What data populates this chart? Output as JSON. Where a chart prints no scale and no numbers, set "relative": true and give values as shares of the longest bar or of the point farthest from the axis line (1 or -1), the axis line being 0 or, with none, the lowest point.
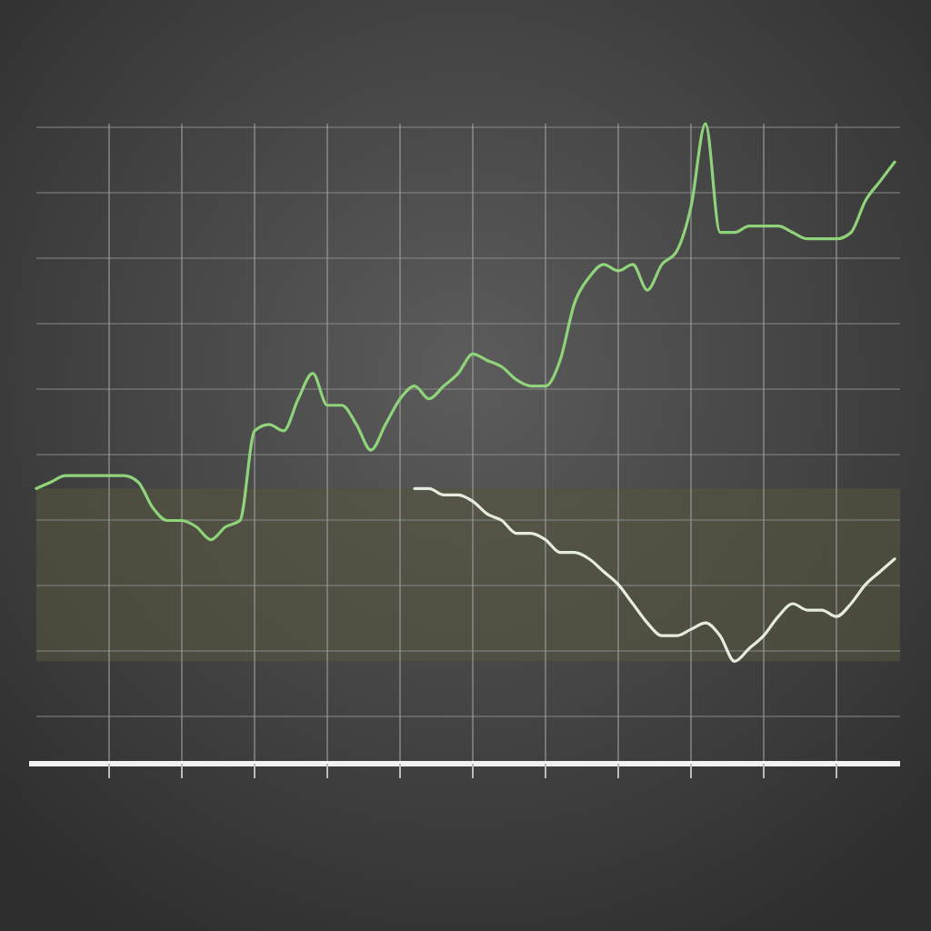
{
  "chart_data": {
    "type": "line",
    "relative": true,
    "categories": [
      null,
      null,
      null,
      null,
      null,
      null,
      null,
      null,
      null,
      null,
      null,
      null,
      null,
      null,
      null,
      null,
      null,
      null,
      null,
      null,
      null,
      null,
      null,
      null,
      null,
      null,
      null,
      null,
      null,
      null,
      null,
      null,
      null,
      null,
      null,
      null,
      null,
      null,
      null,
      null,
      null,
      null,
      null,
      null,
      null,
      null,
      null,
      null,
      null,
      null,
      null,
      null,
      null,
      null,
      null,
      null,
      null,
      null,
      null,
      null
    ],
    "series": [
      {
        "color": "#8fd47a",
        "values": [
          0.43,
          0.44,
          0.45,
          0.45,
          0.45,
          0.45,
          0.45,
          0.44,
          0.4,
          0.38,
          0.38,
          0.37,
          0.35,
          0.37,
          0.38,
          0.52,
          0.53,
          0.52,
          0.57,
          0.61,
          0.56,
          0.56,
          0.53,
          0.49,
          0.53,
          0.57,
          0.59,
          0.57,
          0.59,
          0.61,
          0.64,
          0.63,
          0.62,
          0.6,
          0.59,
          0.59,
          0.63,
          0.72,
          0.76,
          0.78,
          0.77,
          0.78,
          0.74,
          0.78,
          0.8,
          0.87,
          1,
          0.83,
          0.83,
          0.84,
          0.84,
          0.84,
          0.83,
          0.82,
          0.82,
          0.82,
          0.83,
          0.88,
          0.91,
          0.94
        ]
      },
      {
        "color": "#e6ecdc",
        "values": [
          null,
          null,
          null,
          null,
          null,
          null,
          null,
          null,
          null,
          null,
          null,
          null,
          null,
          null,
          null,
          null,
          null,
          null,
          null,
          null,
          null,
          null,
          null,
          null,
          null,
          null,
          0.43,
          0.43,
          0.42,
          0.42,
          0.41,
          0.39,
          0.38,
          0.36,
          0.36,
          0.35,
          0.33,
          0.33,
          0.32,
          0.3,
          0.28,
          0.25,
          0.22,
          0.2,
          0.2,
          0.21,
          0.22,
          0.2,
          0.16,
          0.18,
          0.2,
          0.23,
          0.25,
          0.24,
          0.24,
          0.23,
          0.25,
          0.28,
          0.3,
          0.32
        ]
      }
    ],
    "bands": [
      {
        "axis": "y",
        "from": 0.16,
        "to": 0.43,
        "color": "#55553f"
      }
    ],
    "grid": true,
    "line_style": "solid"
  }
}
